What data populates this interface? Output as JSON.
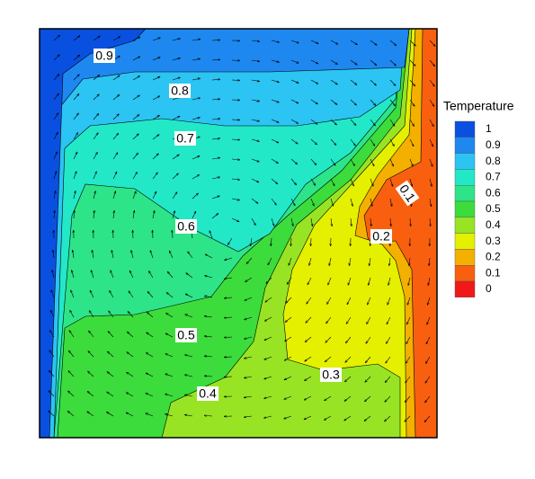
{
  "chart_data": {
    "type": "contour",
    "legend_title": "Temperature",
    "levels": [
      {
        "value": 1,
        "color": "#0a50e0"
      },
      {
        "value": 0.9,
        "color": "#1e88f0"
      },
      {
        "value": 0.8,
        "color": "#2cc4f2"
      },
      {
        "value": 0.7,
        "color": "#22e8c8"
      },
      {
        "value": 0.6,
        "color": "#2ee488"
      },
      {
        "value": 0.5,
        "color": "#3cdc3c"
      },
      {
        "value": 0.4,
        "color": "#98e424"
      },
      {
        "value": 0.3,
        "color": "#e4f000"
      },
      {
        "value": 0.2,
        "color": "#f4b000"
      },
      {
        "value": 0.1,
        "color": "#f86010"
      },
      {
        "value": 0,
        "color": "#f01818"
      }
    ],
    "contour_labels": [
      0.9,
      0.8,
      0.7,
      0.6,
      0.5,
      0.4,
      0.3,
      0.2,
      0.1
    ]
  }
}
